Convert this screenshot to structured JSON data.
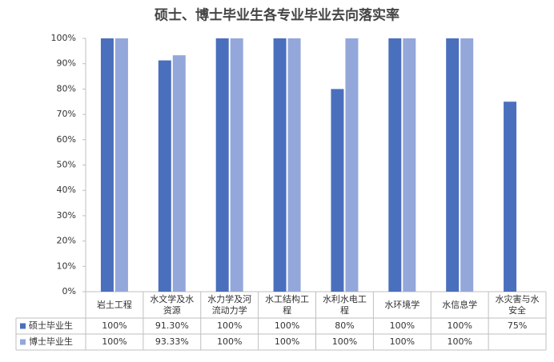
{
  "chart_data": {
    "type": "bar",
    "title": "硕士、博士毕业生各专业毕业去向落实率",
    "categories": [
      "岩土工程",
      "水文学及水资源",
      "水力学及河流动力学",
      "水工结构工程",
      "水利水电工程",
      "水环境学",
      "水信息学",
      "水灾害与水安全"
    ],
    "series": [
      {
        "name": "硕士毕业生",
        "color": "#4a6fbd",
        "values": [
          100,
          91.3,
          100,
          100,
          80,
          100,
          100,
          75
        ],
        "value_labels": [
          "100%",
          "91.30%",
          "100%",
          "100%",
          "80%",
          "100%",
          "100%",
          "75%"
        ]
      },
      {
        "name": "博士毕业生",
        "color": "#94a7da",
        "values": [
          100,
          93.33,
          100,
          100,
          100,
          100,
          100,
          null
        ],
        "value_labels": [
          "100%",
          "93.33%",
          "100%",
          "100%",
          "100%",
          "100%",
          "100%",
          null
        ]
      }
    ],
    "ylim": [
      0,
      100
    ],
    "yticks": [
      {
        "value": 0,
        "label": "0%"
      },
      {
        "value": 10,
        "label": "10%"
      },
      {
        "value": 20,
        "label": "20%"
      },
      {
        "value": 30,
        "label": "30%"
      },
      {
        "value": 40,
        "label": "40%"
      },
      {
        "value": 50,
        "label": "50%"
      },
      {
        "value": 60,
        "label": "60%"
      },
      {
        "value": 70,
        "label": "70%"
      },
      {
        "value": 80,
        "label": "80%"
      },
      {
        "value": 90,
        "label": "90%"
      },
      {
        "value": 100,
        "label": "100%"
      }
    ]
  }
}
